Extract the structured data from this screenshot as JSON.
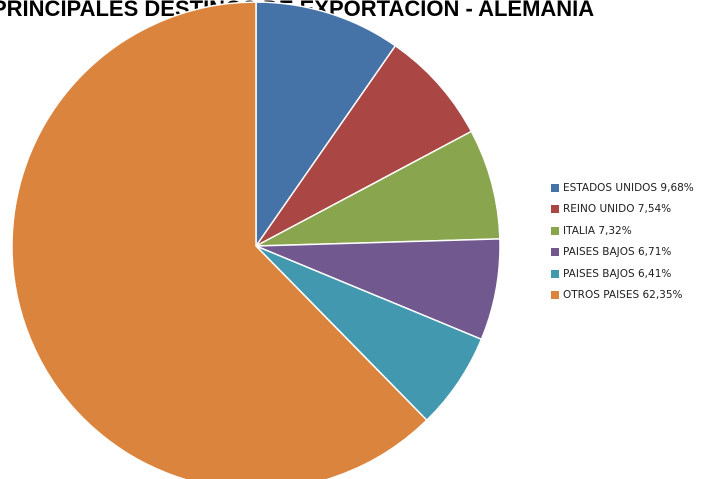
{
  "chart_data": {
    "type": "pie",
    "title": "PRINCIPALES DESTINOS DE EXPORTACIÓN - ALEMANIA",
    "slices": [
      {
        "label": "ESTADOS UNIDOS 9,68%",
        "value": 9.68,
        "color": "#4572A7"
      },
      {
        "label": "REINO UNIDO 7,54%",
        "value": 7.54,
        "color": "#AA4643"
      },
      {
        "label": "ITALIA 7,32%",
        "value": 7.32,
        "color": "#89A54E"
      },
      {
        "label": "PAISES BAJOS 6,71%",
        "value": 6.71,
        "color": "#71588F"
      },
      {
        "label": "PAISES BAJOS 6,41%",
        "value": 6.41,
        "color": "#4198AF"
      },
      {
        "label": "OTROS PAISES 62,35%",
        "value": 62.35,
        "color": "#DB843D"
      }
    ],
    "legend_position": "right"
  }
}
